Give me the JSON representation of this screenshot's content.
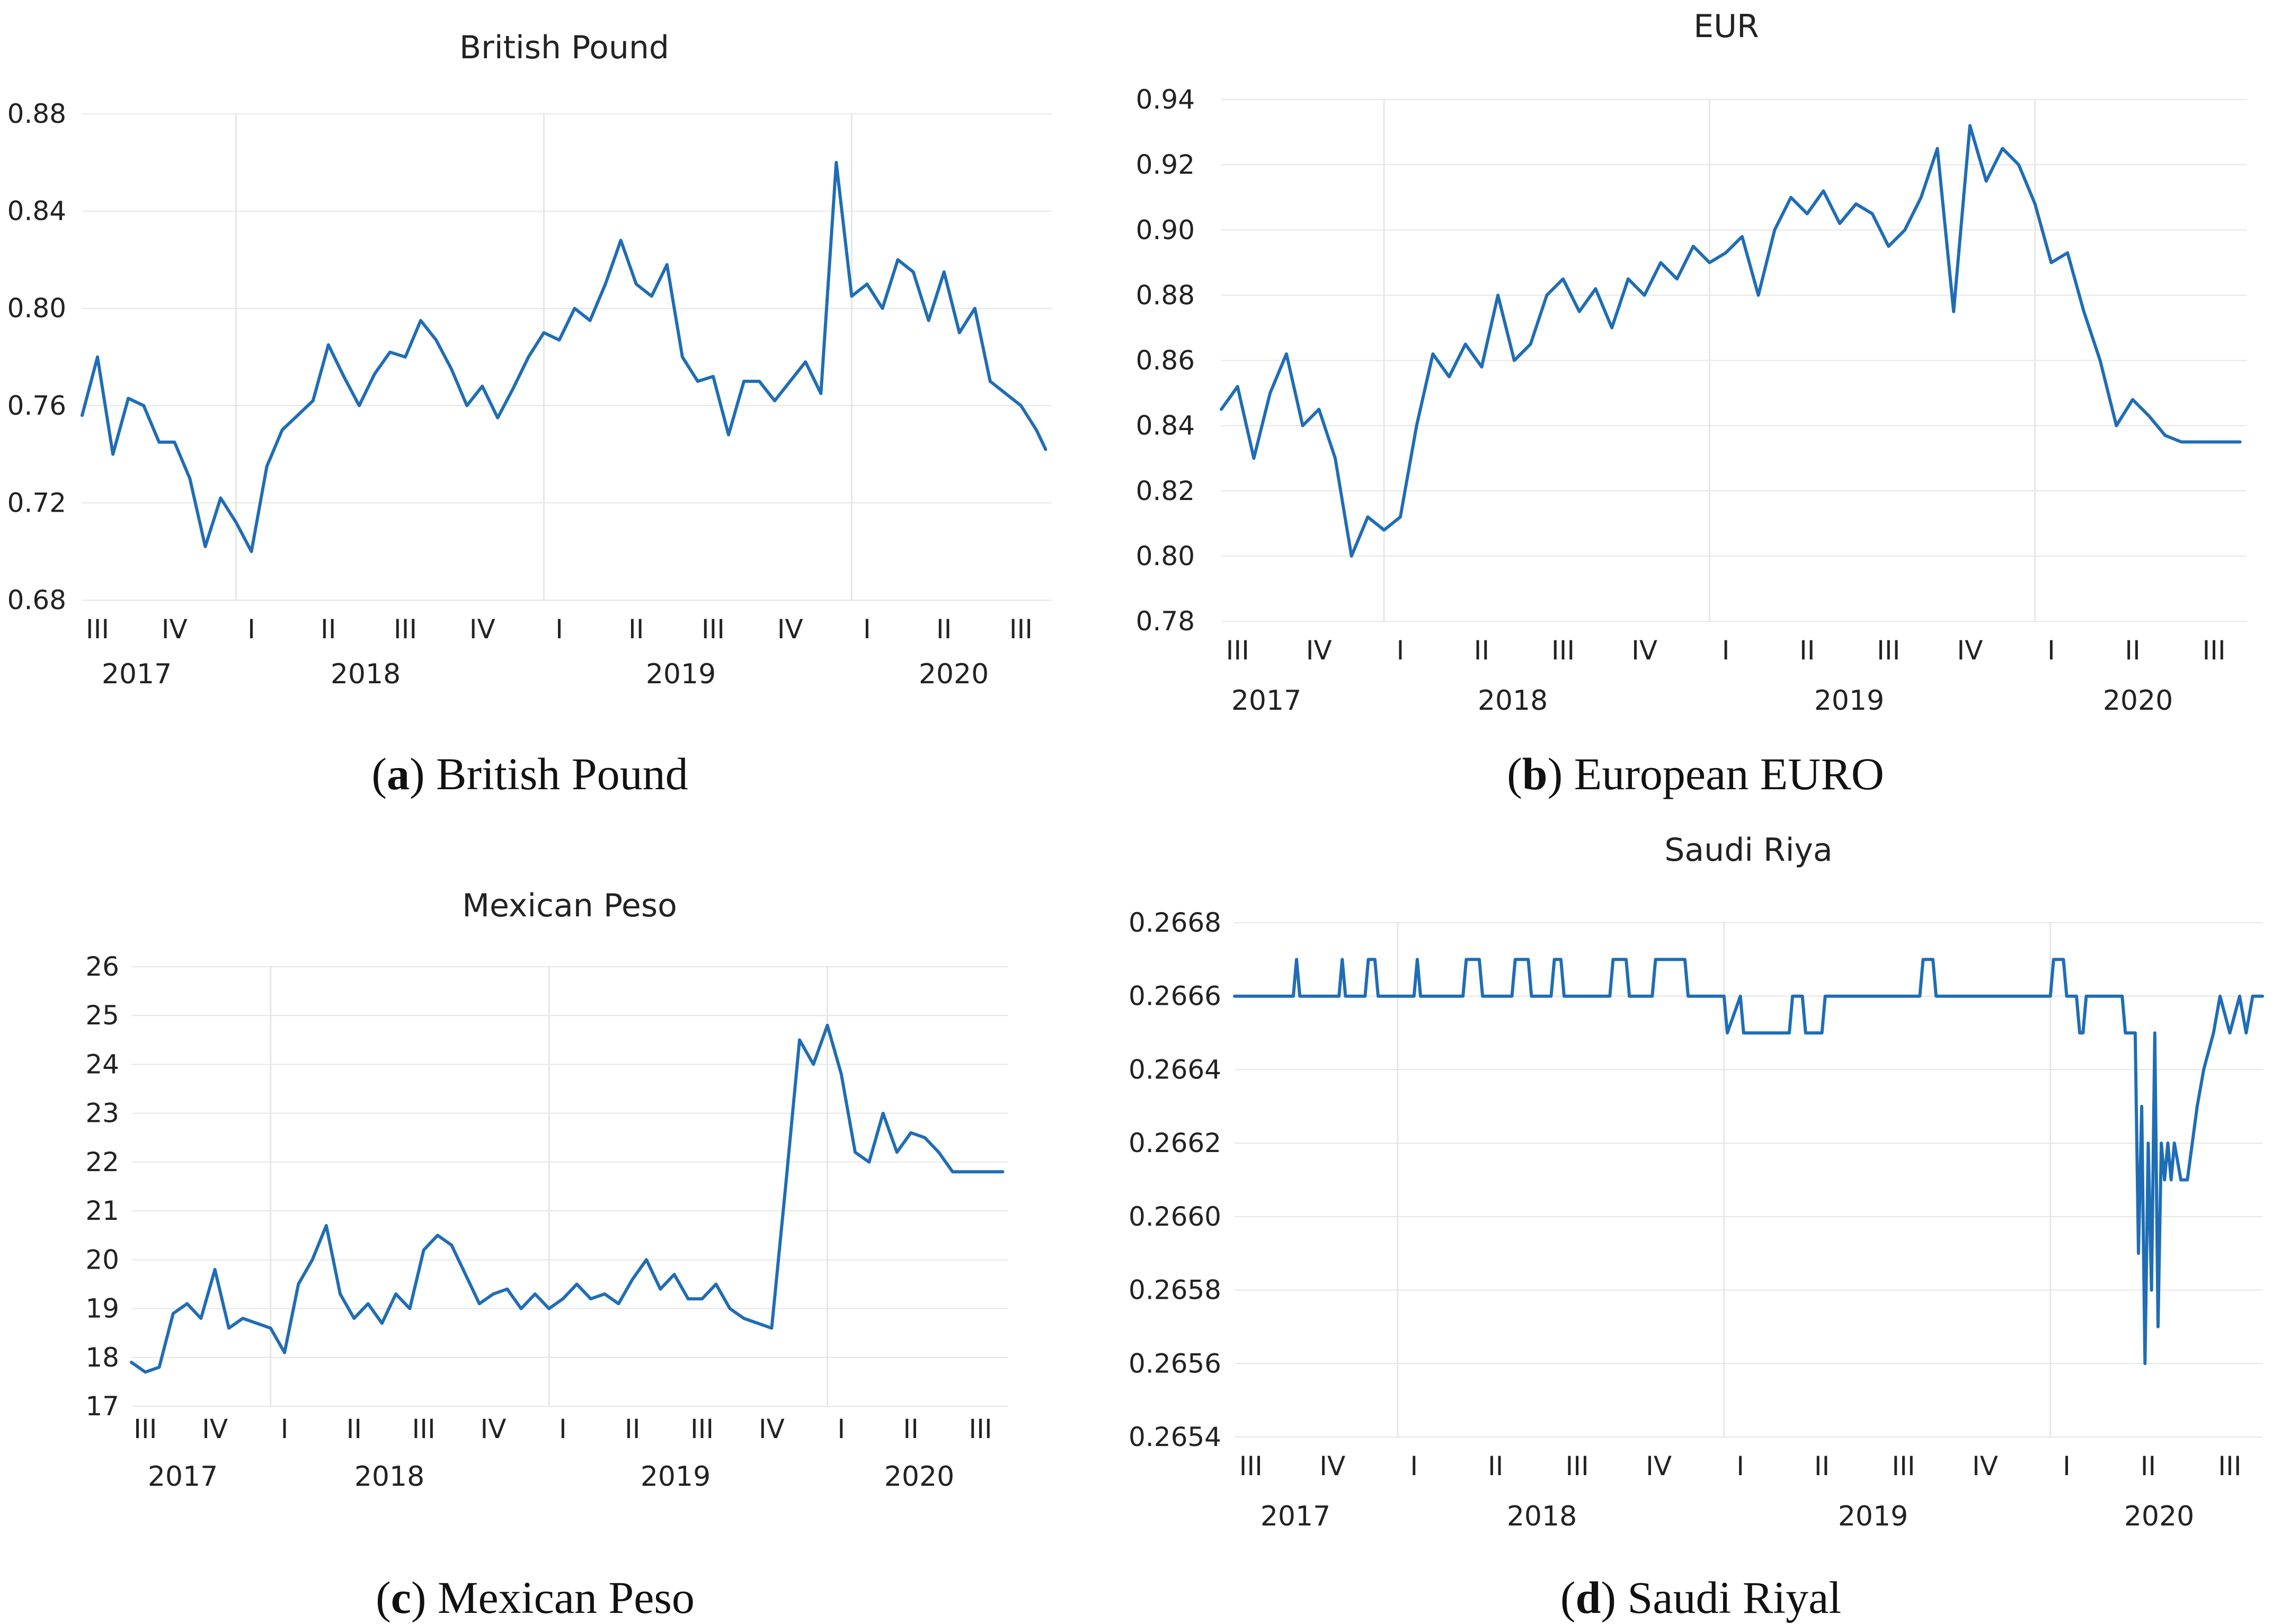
{
  "colors": {
    "series": "#1f6db5",
    "grid": "#e6e6e6",
    "text": "#222222"
  },
  "chart_data": [
    {
      "type": "line",
      "title": "British Pound",
      "caption_letter": "a",
      "caption_text": " British Pound",
      "yticks": [
        "0.88",
        "0.84",
        "0.80",
        "0.76",
        "0.72",
        "0.68"
      ],
      "ylim": [
        0.68,
        0.88
      ],
      "xlim": [
        2017.5,
        2020.65
      ],
      "quarter_labels": [
        "III",
        "IV",
        "I",
        "II",
        "III",
        "IV",
        "I",
        "II",
        "III",
        "IV",
        "I",
        "II",
        "III"
      ],
      "year_labels": [
        "2017",
        "2018",
        "2019",
        "2020"
      ],
      "x": [
        2017.5,
        2017.55,
        2017.6,
        2017.65,
        2017.7,
        2017.75,
        2017.8,
        2017.85,
        2017.9,
        2017.95,
        2018.0,
        2018.05,
        2018.1,
        2018.15,
        2018.2,
        2018.25,
        2018.3,
        2018.35,
        2018.4,
        2018.45,
        2018.5,
        2018.55,
        2018.6,
        2018.65,
        2018.7,
        2018.75,
        2018.8,
        2018.85,
        2018.9,
        2018.95,
        2019.0,
        2019.05,
        2019.1,
        2019.15,
        2019.2,
        2019.25,
        2019.3,
        2019.35,
        2019.4,
        2019.45,
        2019.5,
        2019.55,
        2019.6,
        2019.65,
        2019.7,
        2019.75,
        2019.8,
        2019.85,
        2019.9,
        2019.95,
        2020.0,
        2020.05,
        2020.1,
        2020.15,
        2020.2,
        2020.25,
        2020.3,
        2020.35,
        2020.4,
        2020.45,
        2020.5,
        2020.55,
        2020.6,
        2020.63
      ],
      "values": [
        0.756,
        0.78,
        0.74,
        0.763,
        0.76,
        0.745,
        0.745,
        0.73,
        0.702,
        0.722,
        0.712,
        0.7,
        0.735,
        0.75,
        0.756,
        0.762,
        0.785,
        0.772,
        0.76,
        0.773,
        0.782,
        0.78,
        0.795,
        0.787,
        0.775,
        0.76,
        0.768,
        0.755,
        0.767,
        0.78,
        0.79,
        0.787,
        0.8,
        0.795,
        0.81,
        0.828,
        0.81,
        0.805,
        0.818,
        0.78,
        0.77,
        0.772,
        0.748,
        0.77,
        0.77,
        0.762,
        0.77,
        0.778,
        0.765,
        0.86,
        0.805,
        0.81,
        0.8,
        0.82,
        0.815,
        0.795,
        0.815,
        0.79,
        0.8,
        0.77,
        0.765,
        0.76,
        0.75,
        0.742
      ]
    },
    {
      "type": "line",
      "title": "EUR",
      "caption_letter": "b",
      "caption_text": " European EURO",
      "yticks": [
        "0.94",
        "0.92",
        "0.90",
        "0.88",
        "0.86",
        "0.84",
        "0.82",
        "0.80",
        "0.78"
      ],
      "ylim": [
        0.78,
        0.94
      ],
      "xlim": [
        2017.5,
        2020.65
      ],
      "quarter_labels": [
        "III",
        "IV",
        "I",
        "II",
        "III",
        "IV",
        "I",
        "II",
        "III",
        "IV",
        "I",
        "II",
        "III"
      ],
      "year_labels": [
        "2017",
        "2018",
        "2019",
        "2020"
      ],
      "x": [
        2017.5,
        2017.55,
        2017.6,
        2017.65,
        2017.7,
        2017.75,
        2017.8,
        2017.85,
        2017.9,
        2017.95,
        2018.0,
        2018.05,
        2018.1,
        2018.15,
        2018.2,
        2018.25,
        2018.3,
        2018.35,
        2018.4,
        2018.45,
        2018.5,
        2018.55,
        2018.6,
        2018.65,
        2018.7,
        2018.75,
        2018.8,
        2018.85,
        2018.9,
        2018.95,
        2019.0,
        2019.05,
        2019.1,
        2019.15,
        2019.2,
        2019.25,
        2019.3,
        2019.35,
        2019.4,
        2019.45,
        2019.5,
        2019.55,
        2019.6,
        2019.65,
        2019.7,
        2019.75,
        2019.8,
        2019.85,
        2019.9,
        2019.95,
        2020.0,
        2020.05,
        2020.1,
        2020.15,
        2020.2,
        2020.25,
        2020.3,
        2020.35,
        2020.4,
        2020.45,
        2020.5,
        2020.55,
        2020.6,
        2020.63
      ],
      "values": [
        0.845,
        0.852,
        0.83,
        0.85,
        0.862,
        0.84,
        0.845,
        0.83,
        0.8,
        0.812,
        0.808,
        0.812,
        0.84,
        0.862,
        0.855,
        0.865,
        0.858,
        0.88,
        0.86,
        0.865,
        0.88,
        0.885,
        0.875,
        0.882,
        0.87,
        0.885,
        0.88,
        0.89,
        0.885,
        0.895,
        0.89,
        0.893,
        0.898,
        0.88,
        0.9,
        0.91,
        0.905,
        0.912,
        0.902,
        0.908,
        0.905,
        0.895,
        0.9,
        0.91,
        0.925,
        0.875,
        0.932,
        0.915,
        0.925,
        0.92,
        0.908,
        0.89,
        0.893,
        0.875,
        0.86,
        0.84,
        0.848,
        0.843,
        0.837,
        0.835,
        0.835,
        0.835,
        0.835,
        0.835
      ]
    },
    {
      "type": "line",
      "title": "Mexican Peso",
      "caption_letter": "c",
      "caption_text": " Mexican Peso",
      "yticks": [
        "26",
        "25",
        "24",
        "23",
        "22",
        "21",
        "20",
        "19",
        "18",
        "17"
      ],
      "ylim": [
        17,
        26
      ],
      "xlim": [
        2017.5,
        2020.65
      ],
      "quarter_labels": [
        "III",
        "IV",
        "I",
        "II",
        "III",
        "IV",
        "I",
        "II",
        "III",
        "IV",
        "I",
        "II",
        "III"
      ],
      "year_labels": [
        "2017",
        "2018",
        "2019",
        "2020"
      ],
      "x": [
        2017.5,
        2017.55,
        2017.6,
        2017.65,
        2017.7,
        2017.75,
        2017.8,
        2017.85,
        2017.9,
        2017.95,
        2018.0,
        2018.05,
        2018.1,
        2018.15,
        2018.2,
        2018.25,
        2018.3,
        2018.35,
        2018.4,
        2018.45,
        2018.5,
        2018.55,
        2018.6,
        2018.65,
        2018.7,
        2018.75,
        2018.8,
        2018.85,
        2018.9,
        2018.95,
        2019.0,
        2019.05,
        2019.1,
        2019.15,
        2019.2,
        2019.25,
        2019.3,
        2019.35,
        2019.4,
        2019.45,
        2019.5,
        2019.55,
        2019.6,
        2019.65,
        2019.7,
        2019.75,
        2019.8,
        2019.85,
        2019.9,
        2019.95,
        2020.0,
        2020.05,
        2020.1,
        2020.15,
        2020.2,
        2020.25,
        2020.3,
        2020.35,
        2020.4,
        2020.45,
        2020.5,
        2020.55,
        2020.6,
        2020.63
      ],
      "values": [
        17.9,
        17.7,
        17.8,
        18.9,
        19.1,
        18.8,
        19.8,
        18.6,
        18.8,
        18.7,
        18.6,
        18.1,
        19.5,
        20.0,
        20.7,
        19.3,
        18.8,
        19.1,
        18.7,
        19.3,
        19.0,
        20.2,
        20.5,
        20.3,
        19.7,
        19.1,
        19.3,
        19.4,
        19.0,
        19.3,
        19.0,
        19.2,
        19.5,
        19.2,
        19.3,
        19.1,
        19.6,
        20.0,
        19.4,
        19.7,
        19.2,
        19.2,
        19.5,
        19.0,
        18.8,
        18.7,
        18.6,
        21.5,
        24.5,
        24.0,
        24.8,
        23.8,
        22.2,
        22.0,
        23.0,
        22.2,
        22.6,
        22.5,
        22.2,
        21.8,
        21.8,
        21.8,
        21.8,
        21.8
      ]
    },
    {
      "type": "line",
      "title": "Saudi Riya",
      "caption_letter": "d",
      "caption_text": " Saudi Riyal",
      "yticks": [
        "0.2668",
        "0.2666",
        "0.2664",
        "0.2662",
        "0.2660",
        "0.2658",
        "0.2656",
        "0.2654"
      ],
      "ylim": [
        0.2654,
        0.2668
      ],
      "xlim": [
        2017.5,
        2020.65
      ],
      "quarter_labels": [
        "III",
        "IV",
        "I",
        "II",
        "III",
        "IV",
        "I",
        "II",
        "III",
        "IV",
        "I",
        "II",
        "III"
      ],
      "year_labels": [
        "2017",
        "2018",
        "2019",
        "2020"
      ],
      "x": [
        2017.5,
        2017.68,
        2017.69,
        2017.7,
        2017.82,
        2017.83,
        2017.84,
        2017.9,
        2017.91,
        2017.93,
        2017.94,
        2018.05,
        2018.06,
        2018.07,
        2018.2,
        2018.21,
        2018.25,
        2018.26,
        2018.35,
        2018.36,
        2018.4,
        2018.41,
        2018.47,
        2018.48,
        2018.5,
        2018.51,
        2018.65,
        2018.66,
        2018.7,
        2018.71,
        2018.78,
        2018.79,
        2018.88,
        2018.89,
        2019.0,
        2019.01,
        2019.05,
        2019.06,
        2019.2,
        2019.21,
        2019.24,
        2019.25,
        2019.3,
        2019.31,
        2019.6,
        2019.61,
        2019.64,
        2019.65,
        2020.0,
        2020.01,
        2020.04,
        2020.05,
        2020.08,
        2020.09,
        2020.1,
        2020.11,
        2020.22,
        2020.23,
        2020.26,
        2020.27,
        2020.28,
        2020.29,
        2020.3,
        2020.31,
        2020.32,
        2020.33,
        2020.34,
        2020.35,
        2020.36,
        2020.37,
        2020.38,
        2020.4,
        2020.42,
        2020.45,
        2020.47,
        2020.5,
        2020.52,
        2020.55,
        2020.58,
        2020.6,
        2020.62,
        2020.65
      ],
      "values": [
        0.2666,
        0.2666,
        0.2667,
        0.2666,
        0.2666,
        0.2667,
        0.2666,
        0.2666,
        0.2667,
        0.2667,
        0.2666,
        0.2666,
        0.2667,
        0.2666,
        0.2666,
        0.2667,
        0.2667,
        0.2666,
        0.2666,
        0.2667,
        0.2667,
        0.2666,
        0.2666,
        0.2667,
        0.2667,
        0.2666,
        0.2666,
        0.2667,
        0.2667,
        0.2666,
        0.2666,
        0.2667,
        0.2667,
        0.2666,
        0.2666,
        0.2665,
        0.2666,
        0.2665,
        0.2665,
        0.2666,
        0.2666,
        0.2665,
        0.2665,
        0.2666,
        0.2666,
        0.2667,
        0.2667,
        0.2666,
        0.2666,
        0.2667,
        0.2667,
        0.2666,
        0.2666,
        0.2665,
        0.2665,
        0.2666,
        0.2666,
        0.2665,
        0.2665,
        0.2659,
        0.2663,
        0.2656,
        0.2662,
        0.2658,
        0.2665,
        0.2657,
        0.2662,
        0.2661,
        0.2662,
        0.2661,
        0.2662,
        0.2661,
        0.2661,
        0.2663,
        0.2664,
        0.2665,
        0.2666,
        0.2665,
        0.2666,
        0.2665,
        0.2666,
        0.2666
      ]
    }
  ]
}
